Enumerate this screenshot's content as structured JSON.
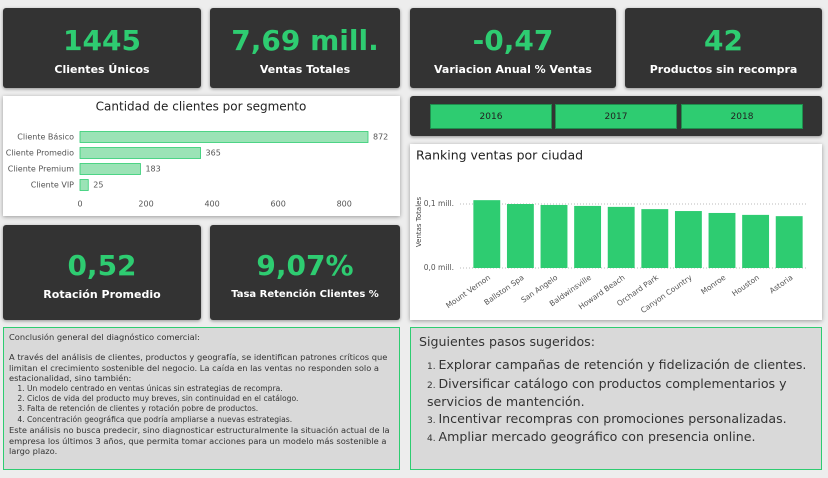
{
  "kpis": [
    {
      "value": "1445",
      "label": "Clientes Únicos"
    },
    {
      "value": "7,69 mill.",
      "label": "Ventas Totales"
    },
    {
      "value": "-0,47",
      "label": "Variacion Anual % Ventas"
    },
    {
      "value": "42",
      "label": "Productos sin recompra"
    },
    {
      "value": "0,52",
      "label": "Rotación Promedio"
    },
    {
      "value": "9,07%",
      "label": "Tasa Retención Clientes %"
    }
  ],
  "slicer": {
    "options": [
      "2016",
      "2017",
      "2018"
    ]
  },
  "chart_data": [
    {
      "type": "barh",
      "title": "Cantidad de clientes por segmento",
      "categories": [
        "Cliente Básico",
        "Cliente Promedio",
        "Cliente Premium",
        "Cliente VIP"
      ],
      "values": [
        872,
        365,
        183,
        25
      ],
      "color": "#9be3b6",
      "xlim": [
        0,
        872
      ],
      "xticks": [
        0,
        200,
        400,
        600,
        800
      ]
    },
    {
      "type": "bar",
      "title": "Ranking ventas por ciudad",
      "y_label": "Ventas Totales",
      "categories": [
        "Mount Vernon",
        "Ballston Spa",
        "San Angelo",
        "Baldwinsville",
        "Howard Beach",
        "Orchard Park",
        "Canyon Country",
        "Monroe",
        "Houston",
        "Astoria"
      ],
      "values": [
        106000,
        100000,
        98500,
        97000,
        95500,
        92000,
        89000,
        86000,
        83000,
        81000
      ],
      "color": "#2ecc71",
      "ylim": [
        0,
        125000
      ],
      "yticks": [
        {
          "value": 0,
          "label": "0,0 mill."
        },
        {
          "value": 100000,
          "label": "0,1 mill."
        }
      ],
      "grid": true
    }
  ],
  "conclusion": {
    "title": "Conclusión general del diagnóstico comercial:",
    "intro": "A través del análisis de clientes, productos y geografía, se identifican patrones críticos que limitan el crecimiento sostenible del negocio. La caída en las ventas no responden solo a estacionalidad, sino también:",
    "items": [
      "Un modelo centrado en ventas únicas sin estrategias de recompra.",
      "Ciclos de vida del producto muy breves, sin continuidad en el catálogo.",
      "Falta de retención de clientes y rotación pobre de productos.",
      "Concentración geográfica que podría ampliarse a nuevas estrategias."
    ],
    "closing": "Este análisis no busca predecir, sino diagnosticar estructuralmente la situación actual de la empresa los últimos 3 años, que permita tomar acciones para un modelo más sostenible a largo plazo."
  },
  "next_steps": {
    "title": "Siguientes pasos sugeridos:",
    "items": [
      "Explorar campañas de retención y fidelización de clientes.",
      "Diversificar catálogo con productos complementarios y servicios de mantención.",
      "Incentivar recompras con promociones personalizadas.",
      "Ampliar mercado geográfico con presencia online."
    ]
  }
}
